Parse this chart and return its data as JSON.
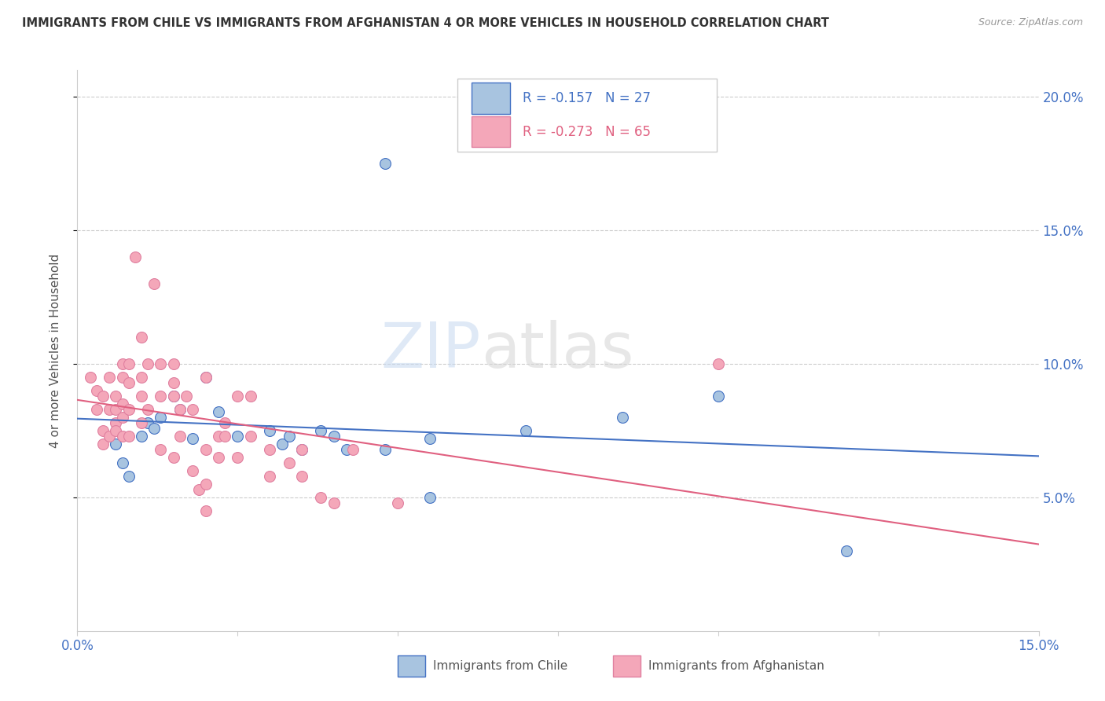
{
  "title": "IMMIGRANTS FROM CHILE VS IMMIGRANTS FROM AFGHANISTAN 4 OR MORE VEHICLES IN HOUSEHOLD CORRELATION CHART",
  "source": "Source: ZipAtlas.com",
  "ylabel": "4 or more Vehicles in Household",
  "xlim": [
    0.0,
    0.15
  ],
  "ylim": [
    0.0,
    0.21
  ],
  "yticks": [
    0.05,
    0.1,
    0.15,
    0.2
  ],
  "ytick_labels": [
    "5.0%",
    "10.0%",
    "15.0%",
    "20.0%"
  ],
  "xticks": [
    0.0,
    0.025,
    0.05,
    0.075,
    0.1,
    0.125,
    0.15
  ],
  "legend_chile_r": "R = -0.157",
  "legend_chile_n": "N = 27",
  "legend_afghan_r": "R = -0.273",
  "legend_afghan_n": "N = 65",
  "chile_color": "#a8c4e0",
  "afghan_color": "#f4a7b9",
  "chile_line_color": "#4472c4",
  "afghan_line_color": "#e06080",
  "chile_scatter": [
    [
      0.006,
      0.07
    ],
    [
      0.007,
      0.063
    ],
    [
      0.008,
      0.058
    ],
    [
      0.01,
      0.073
    ],
    [
      0.011,
      0.078
    ],
    [
      0.012,
      0.076
    ],
    [
      0.013,
      0.08
    ],
    [
      0.015,
      0.088
    ],
    [
      0.016,
      0.083
    ],
    [
      0.018,
      0.072
    ],
    [
      0.02,
      0.095
    ],
    [
      0.022,
      0.082
    ],
    [
      0.025,
      0.073
    ],
    [
      0.03,
      0.075
    ],
    [
      0.032,
      0.07
    ],
    [
      0.033,
      0.073
    ],
    [
      0.035,
      0.068
    ],
    [
      0.038,
      0.075
    ],
    [
      0.04,
      0.073
    ],
    [
      0.042,
      0.068
    ],
    [
      0.048,
      0.068
    ],
    [
      0.055,
      0.072
    ],
    [
      0.055,
      0.05
    ],
    [
      0.07,
      0.075
    ],
    [
      0.085,
      0.08
    ],
    [
      0.1,
      0.088
    ],
    [
      0.12,
      0.03
    ]
  ],
  "chile_outlier": [
    0.048,
    0.175
  ],
  "afghan_scatter": [
    [
      0.002,
      0.095
    ],
    [
      0.003,
      0.09
    ],
    [
      0.003,
      0.083
    ],
    [
      0.004,
      0.088
    ],
    [
      0.004,
      0.075
    ],
    [
      0.004,
      0.07
    ],
    [
      0.005,
      0.095
    ],
    [
      0.005,
      0.083
    ],
    [
      0.005,
      0.073
    ],
    [
      0.006,
      0.088
    ],
    [
      0.006,
      0.083
    ],
    [
      0.006,
      0.078
    ],
    [
      0.006,
      0.075
    ],
    [
      0.007,
      0.1
    ],
    [
      0.007,
      0.095
    ],
    [
      0.007,
      0.085
    ],
    [
      0.007,
      0.08
    ],
    [
      0.007,
      0.073
    ],
    [
      0.008,
      0.1
    ],
    [
      0.008,
      0.093
    ],
    [
      0.008,
      0.083
    ],
    [
      0.008,
      0.073
    ],
    [
      0.009,
      0.14
    ],
    [
      0.01,
      0.11
    ],
    [
      0.01,
      0.095
    ],
    [
      0.01,
      0.088
    ],
    [
      0.01,
      0.078
    ],
    [
      0.011,
      0.1
    ],
    [
      0.011,
      0.083
    ],
    [
      0.012,
      0.13
    ],
    [
      0.013,
      0.1
    ],
    [
      0.013,
      0.088
    ],
    [
      0.013,
      0.068
    ],
    [
      0.015,
      0.1
    ],
    [
      0.015,
      0.093
    ],
    [
      0.015,
      0.088
    ],
    [
      0.015,
      0.065
    ],
    [
      0.016,
      0.083
    ],
    [
      0.016,
      0.073
    ],
    [
      0.017,
      0.088
    ],
    [
      0.018,
      0.083
    ],
    [
      0.018,
      0.06
    ],
    [
      0.019,
      0.053
    ],
    [
      0.02,
      0.095
    ],
    [
      0.02,
      0.068
    ],
    [
      0.02,
      0.055
    ],
    [
      0.02,
      0.045
    ],
    [
      0.022,
      0.073
    ],
    [
      0.022,
      0.065
    ],
    [
      0.023,
      0.078
    ],
    [
      0.023,
      0.073
    ],
    [
      0.025,
      0.088
    ],
    [
      0.025,
      0.065
    ],
    [
      0.027,
      0.088
    ],
    [
      0.027,
      0.073
    ],
    [
      0.03,
      0.068
    ],
    [
      0.03,
      0.058
    ],
    [
      0.033,
      0.063
    ],
    [
      0.035,
      0.068
    ],
    [
      0.035,
      0.058
    ],
    [
      0.038,
      0.05
    ],
    [
      0.04,
      0.048
    ],
    [
      0.043,
      0.068
    ],
    [
      0.05,
      0.048
    ],
    [
      0.1,
      0.1
    ]
  ]
}
